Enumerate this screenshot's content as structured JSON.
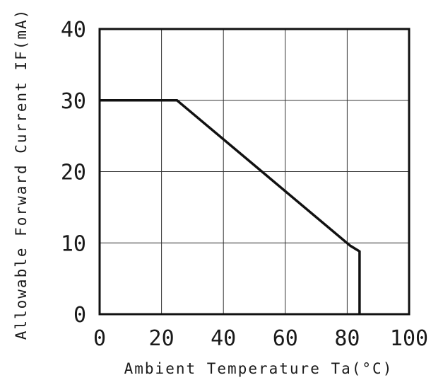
{
  "chart_data": {
    "type": "line",
    "title": "",
    "xlabel": "Ambient Temperature Ta(°C)",
    "ylabel": "Allowable Forward Current IF(mA)",
    "xlim": [
      0,
      100
    ],
    "ylim": [
      0,
      40
    ],
    "xticks": [
      "0",
      "20",
      "40",
      "60",
      "80",
      "100"
    ],
    "yticks": [
      "0",
      "10",
      "20",
      "30",
      "40"
    ],
    "grid": true,
    "legend": "none",
    "series": [
      {
        "x": [
          0,
          25,
          81,
          84,
          84
        ],
        "y": [
          30,
          30,
          9.6,
          8.8,
          0
        ],
        "color": "#111111"
      }
    ]
  }
}
